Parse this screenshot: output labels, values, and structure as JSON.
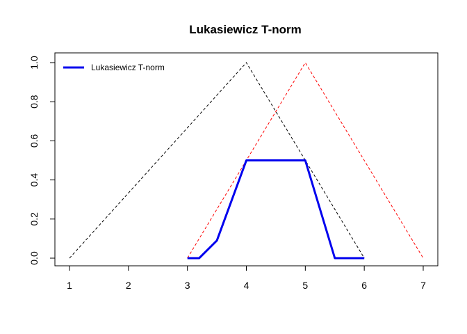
{
  "chart_data": {
    "type": "line",
    "title": "Lukasiewicz T-norm",
    "xlabel": "",
    "ylabel": "",
    "xlim": [
      1,
      7
    ],
    "ylim": [
      0,
      1
    ],
    "x_ticks": [
      1,
      2,
      3,
      4,
      5,
      6,
      7
    ],
    "y_ticks": [
      0.0,
      0.2,
      0.4,
      0.6,
      0.8,
      1.0
    ],
    "y_tick_labels": [
      "0.0",
      "0.2",
      "0.4",
      "0.6",
      "0.8",
      "1.0"
    ],
    "grid": false,
    "legend": {
      "position": "top-left",
      "entries": [
        "Lukasiewicz T-norm"
      ]
    },
    "series": [
      {
        "name": "",
        "color": "#000000",
        "style": "dashed",
        "x": [
          1,
          4,
          6
        ],
        "y": [
          0,
          1,
          0
        ]
      },
      {
        "name": "",
        "color": "#ff0000",
        "style": "dashed",
        "x": [
          3,
          5,
          7
        ],
        "y": [
          0,
          1,
          0
        ]
      },
      {
        "name": "Lukasiewicz T-norm",
        "color": "#0000ee",
        "style": "solid-thick",
        "x": [
          3,
          3.2,
          3.5,
          4,
          5,
          5.5,
          6
        ],
        "y": [
          0,
          0,
          0.09,
          0.5,
          0.5,
          0,
          0
        ]
      }
    ]
  }
}
